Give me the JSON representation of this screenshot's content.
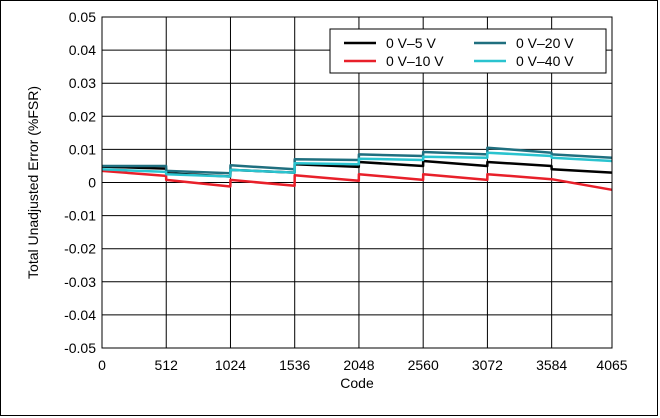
{
  "chart_data": {
    "type": "line",
    "title": "",
    "xlabel": "Code",
    "ylabel": "Total Unadjusted Error (%FSR)",
    "xlim": [
      0,
      4065
    ],
    "ylim": [
      -0.05,
      0.05
    ],
    "x_ticks": [
      0,
      512,
      1024,
      1536,
      2048,
      2560,
      3072,
      3584,
      4065
    ],
    "y_ticks": [
      -0.05,
      -0.04,
      -0.03,
      -0.02,
      -0.01,
      0,
      0.01,
      0.02,
      0.03,
      0.04,
      0.05
    ],
    "y_tick_labels": [
      "-0.05",
      "-0.04",
      "-0.03",
      "-0.02",
      "-0.01",
      "0",
      "0.01",
      "0.02",
      "0.03",
      "0.04",
      "0.05"
    ],
    "grid": true,
    "legend_position": "top-right",
    "series": [
      {
        "name": "0 V–5 V",
        "color": "#000000",
        "x": [
          0,
          511,
          512,
          1023,
          1024,
          1535,
          1536,
          2047,
          2048,
          2559,
          2560,
          3071,
          3072,
          3583,
          3584,
          4065
        ],
        "y": [
          0.0048,
          0.0042,
          0.0028,
          0.0018,
          0.0038,
          0.003,
          0.0055,
          0.0047,
          0.0062,
          0.005,
          0.0065,
          0.005,
          0.0062,
          0.005,
          0.004,
          0.003
        ]
      },
      {
        "name": "0 V–10 V",
        "color": "#e8202a",
        "x": [
          0,
          511,
          512,
          1023,
          1024,
          1535,
          1536,
          2047,
          2048,
          2559,
          2560,
          3071,
          3072,
          3583,
          3584,
          4065
        ],
        "y": [
          0.0035,
          0.002,
          0.0008,
          -0.0012,
          0.0008,
          -0.001,
          0.0022,
          0.0005,
          0.0025,
          0.0008,
          0.0025,
          0.0008,
          0.0025,
          0.001,
          0.001,
          -0.0022
        ]
      },
      {
        "name": "0 V–20 V",
        "color": "#1f6f7f",
        "x": [
          0,
          511,
          512,
          1023,
          1024,
          1535,
          1536,
          2047,
          2048,
          2559,
          2560,
          3071,
          3072,
          3583,
          3584,
          4065
        ],
        "y": [
          0.005,
          0.005,
          0.0035,
          0.0028,
          0.0052,
          0.004,
          0.007,
          0.0068,
          0.0085,
          0.008,
          0.0092,
          0.0085,
          0.0105,
          0.009,
          0.0085,
          0.0075
        ]
      },
      {
        "name": "0 V–40 V",
        "color": "#2ac3cf",
        "x": [
          0,
          511,
          512,
          1023,
          1024,
          1535,
          1536,
          2047,
          2048,
          2559,
          2560,
          3071,
          3072,
          3583,
          3584,
          4065
        ],
        "y": [
          0.004,
          0.0032,
          0.0025,
          0.0018,
          0.0038,
          0.003,
          0.0058,
          0.0055,
          0.0072,
          0.0068,
          0.0078,
          0.0075,
          0.009,
          0.008,
          0.0075,
          0.0065
        ]
      }
    ]
  }
}
